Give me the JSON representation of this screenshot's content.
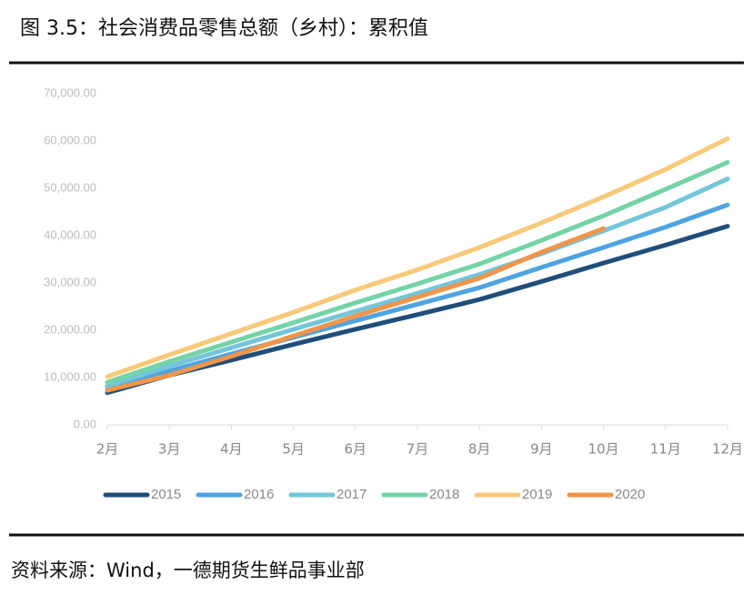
{
  "title": "图 3.5：社会消费品零售总额（乡村）：累积值",
  "source": "资料来源：Wind，一德期货生鲜品事业部",
  "chart_data": {
    "type": "line",
    "categories": [
      "2月",
      "3月",
      "4月",
      "5月",
      "6月",
      "7月",
      "8月",
      "9月",
      "10月",
      "11月",
      "12月"
    ],
    "series": [
      {
        "name": "2015",
        "color": "#1f4e79",
        "values": [
          6800,
          10500,
          13700,
          17000,
          20200,
          23300,
          26500,
          30300,
          34200,
          38000,
          42000
        ]
      },
      {
        "name": "2016",
        "color": "#4ea3e0",
        "values": [
          7500,
          11400,
          15000,
          18500,
          22000,
          25500,
          29000,
          33300,
          37500,
          41800,
          46500
        ]
      },
      {
        "name": "2017",
        "color": "#72c5db",
        "values": [
          8200,
          12400,
          16300,
          20200,
          24000,
          27800,
          31800,
          36200,
          41000,
          46000,
          52000
        ]
      },
      {
        "name": "2018",
        "color": "#74d3a6",
        "values": [
          9000,
          13400,
          17500,
          21600,
          25800,
          29800,
          34000,
          39000,
          44200,
          49800,
          55500
        ]
      },
      {
        "name": "2019",
        "color": "#f7c978",
        "values": [
          10200,
          14800,
          19300,
          23800,
          28500,
          32800,
          37500,
          42700,
          48200,
          54000,
          60500
        ]
      },
      {
        "name": "2020",
        "color": "#f0954a",
        "values": [
          7300,
          10500,
          14500,
          18800,
          23000,
          27000,
          31000,
          36500,
          41500,
          null,
          null
        ]
      }
    ],
    "ylim": [
      0,
      70000
    ],
    "yticks": [
      {
        "value": 0,
        "label": "0.00"
      },
      {
        "value": 10000,
        "label": "10,000.00"
      },
      {
        "value": 20000,
        "label": "20,000.00"
      },
      {
        "value": 30000,
        "label": "30,000.00"
      },
      {
        "value": 40000,
        "label": "40,000.00"
      },
      {
        "value": 50000,
        "label": "50,000.00"
      },
      {
        "value": 60000,
        "label": "60,000.00"
      },
      {
        "value": 70000,
        "label": "70,000.00"
      }
    ],
    "grid": false
  }
}
